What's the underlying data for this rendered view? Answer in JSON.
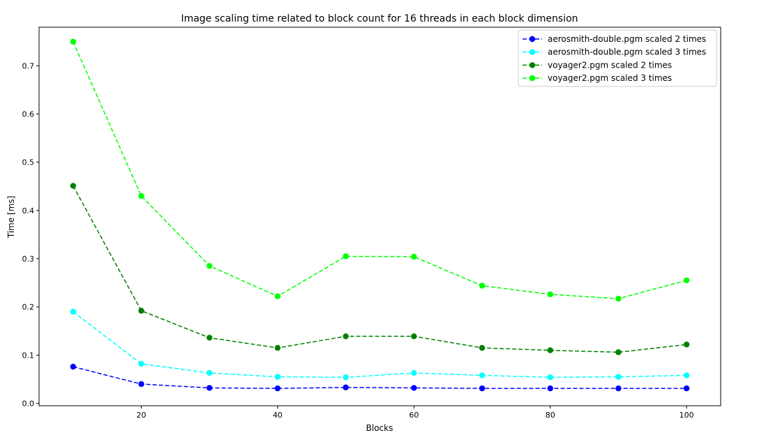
{
  "chart_data": {
    "type": "line",
    "title": "Image scaling time related to block count for 16 threads in each block dimension",
    "xlabel": "Blocks",
    "ylabel": "Time [ms]",
    "xlim": [
      5,
      105
    ],
    "ylim": [
      -0.005,
      0.78
    ],
    "xticks": [
      20,
      40,
      60,
      80,
      100
    ],
    "yticks": [
      0.0,
      0.1,
      0.2,
      0.3,
      0.4,
      0.5,
      0.6,
      0.7
    ],
    "ytick_labels": [
      "0.0",
      "0.1",
      "0.2",
      "0.3",
      "0.4",
      "0.5",
      "0.6",
      "0.7"
    ],
    "grid": false,
    "legend_position": "top-right",
    "line_style": "dashed",
    "marker": "circle",
    "x": [
      10,
      20,
      30,
      40,
      50,
      60,
      70,
      80,
      90,
      100
    ],
    "series": [
      {
        "name": "aerosmith-double.pgm scaled 2 times",
        "color": "#0000ff",
        "values": [
          0.076,
          0.04,
          0.032,
          0.031,
          0.033,
          0.032,
          0.031,
          0.031,
          0.031,
          0.031
        ]
      },
      {
        "name": "aerosmith-double.pgm scaled 3 times",
        "color": "#00ffff",
        "values": [
          0.19,
          0.082,
          0.063,
          0.055,
          0.054,
          0.063,
          0.058,
          0.054,
          0.055,
          0.058
        ]
      },
      {
        "name": "voyager2.pgm scaled 2 times",
        "color": "#008000",
        "values": [
          0.451,
          0.192,
          0.136,
          0.115,
          0.139,
          0.139,
          0.115,
          0.11,
          0.106,
          0.122
        ]
      },
      {
        "name": "voyager2.pgm scaled 3 times",
        "color": "#00ff00",
        "values": [
          0.75,
          0.43,
          0.285,
          0.222,
          0.305,
          0.304,
          0.244,
          0.226,
          0.217,
          0.255
        ]
      }
    ]
  }
}
